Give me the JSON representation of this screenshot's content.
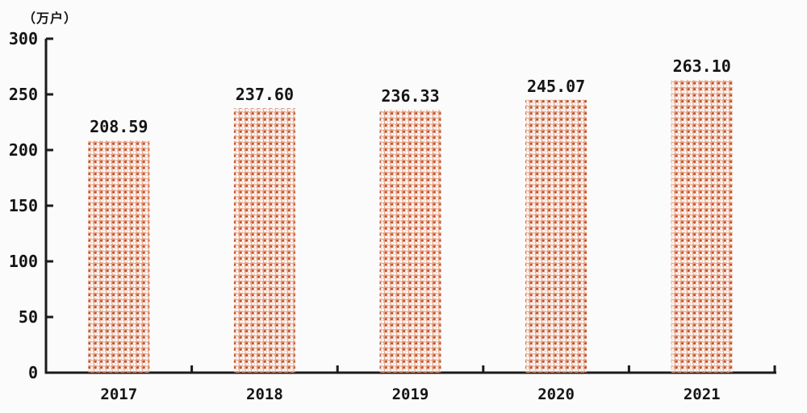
{
  "chart_data": {
    "type": "bar",
    "title": "",
    "unit_label": "（万户）",
    "ylabel": "（万户）",
    "xlabel": "",
    "categories": [
      "2017",
      "2018",
      "2019",
      "2020",
      "2021"
    ],
    "values": [
      208.59,
      237.6,
      236.33,
      245.07,
      263.1
    ],
    "value_labels": [
      "208.59",
      "237.60",
      "236.33",
      "245.07",
      "263.10"
    ],
    "ylim": [
      0,
      300
    ],
    "y_ticks": [
      0,
      50,
      100,
      150,
      200,
      250,
      300
    ],
    "grid": false,
    "legend": null,
    "bar_fill_style": "dotted-lattice",
    "colors": {
      "background": "#fbfbfb",
      "axis": "#1b1b1b",
      "text": "#151515",
      "bar_dot": "#c2552f",
      "bar_dot_halo": "#e0875f",
      "bar_ring": "#eda284"
    }
  }
}
